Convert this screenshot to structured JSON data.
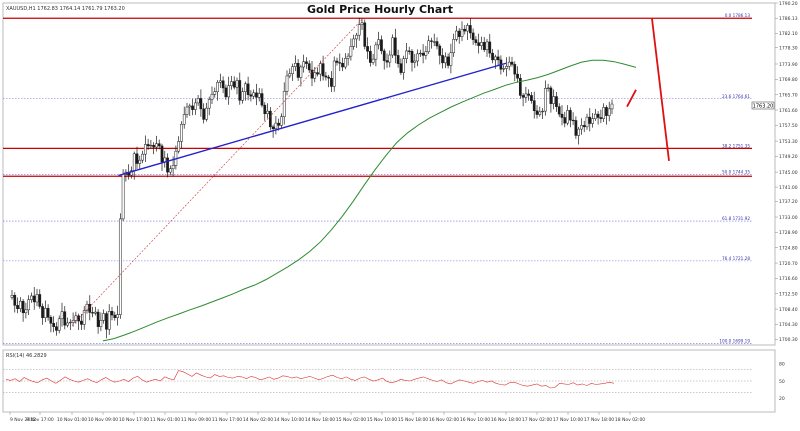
{
  "header": {
    "symbol_info": "XAUUSD,H1  1762.83  1764.14  1761.79  1763.20",
    "title": "Gold Price Hourly Chart"
  },
  "price_badge": "1763.20",
  "fib_labels": [
    "0.0 1786.13",
    "23.6 1764.61",
    "38.2 1751.35",
    "50.0 1744.35",
    "61.8 1731.92",
    "76.4 1721.28",
    "100.0 1699.19"
  ],
  "rsi_label": "RSI(14) 46.2829",
  "chart_data": [
    {
      "type": "line",
      "title": "Gold Price Hourly Chart",
      "instrument": "XAUUSD,H1",
      "ohlc": {
        "open": 1762.83,
        "high": 1764.14,
        "low": 1761.79,
        "close": 1763.2
      },
      "y_ticks": [
        1790.2,
        1786.13,
        1782.1,
        1778.3,
        1773.9,
        1769.8,
        1765.7,
        1761.6,
        1757.5,
        1753.3,
        1749.2,
        1745.0,
        1741.0,
        1737.2,
        1733.0,
        1728.9,
        1724.8,
        1720.7,
        1716.6,
        1712.5,
        1708.4,
        1704.3,
        1700.3
      ],
      "ylim": [
        1698.8,
        1790.2
      ],
      "x_ticks": [
        "9 Nov 2022",
        "9 Nov 17:00",
        "10 Nov 01:00",
        "10 Nov 09:00",
        "10 Nov 17:00",
        "11 Nov 01:00",
        "11 Nov 09:00",
        "11 Nov 17:00",
        "14 Nov 02:00",
        "14 Nov 10:00",
        "14 Nov 18:00",
        "15 Nov 02:00",
        "15 Nov 10:00",
        "15 Nov 18:00",
        "16 Nov 02:00",
        "16 Nov 10:00",
        "16 Nov 18:00",
        "17 Nov 02:00",
        "17 Nov 10:00",
        "17 Nov 18:00",
        "18 Nov 02:00"
      ],
      "fib_levels": [
        {
          "ratio": 0.0,
          "price": 1786.13
        },
        {
          "ratio": 23.6,
          "price": 1764.61
        },
        {
          "ratio": 38.2,
          "price": 1751.35
        },
        {
          "ratio": 50.0,
          "price": 1744.35
        },
        {
          "ratio": 61.8,
          "price": 1731.92
        },
        {
          "ratio": 76.4,
          "price": 1721.28
        },
        {
          "ratio": 100.0,
          "price": 1699.19
        }
      ],
      "horizontal_levels": [
        1786.13,
        1751.35,
        1743.9
      ],
      "current_price": 1763.2,
      "close_series": [
        1712.1,
        1709.4,
        1708.5,
        1710.5,
        1707.4,
        1708.2,
        1710.9,
        1711.9,
        1710.3,
        1712.3,
        1709.1,
        1706.1,
        1708.6,
        1706.2,
        1704.6,
        1703.7,
        1702.7,
        1705.8,
        1707.7,
        1704.1,
        1704.7,
        1704.9,
        1705.4,
        1706.6,
        1705.2,
        1704.3,
        1708.0,
        1709.7,
        1707.5,
        1707.3,
        1707.6,
        1703.7,
        1705.4,
        1707.2,
        1703.0,
        1707.8,
        1706.8,
        1706.1,
        1706.9,
        1732.5,
        1744.4,
        1745.0,
        1744.2,
        1745.4,
        1749.9,
        1747.3,
        1748.2,
        1749.8,
        1752.4,
        1752.0,
        1752.2,
        1751.7,
        1752.6,
        1752.0,
        1747.7,
        1748.8,
        1745.0,
        1745.9,
        1746.8,
        1750.6,
        1753.2,
        1757.8,
        1760.4,
        1762.4,
        1762.7,
        1761.7,
        1763.5,
        1764.7,
        1761.9,
        1759.1,
        1762.1,
        1764.4,
        1765.8,
        1766.5,
        1769.0,
        1769.4,
        1767.5,
        1765.1,
        1768.1,
        1769.2,
        1767.7,
        1769.5,
        1764.2,
        1766.5,
        1768.6,
        1765.7,
        1765.3,
        1766.2,
        1765.0,
        1766.0,
        1762.9,
        1760.6,
        1761.3,
        1757.1,
        1756.6,
        1758.1,
        1757.5,
        1759.8,
        1766.6,
        1770.7,
        1771.3,
        1773.2,
        1774.1,
        1770.3,
        1773.1,
        1774.5,
        1774.0,
        1772.3,
        1770.1,
        1771.6,
        1771.2,
        1774.0,
        1770.7,
        1770.4,
        1770.1,
        1767.9,
        1774.7,
        1774.3,
        1774.1,
        1773.1,
        1775.4,
        1776.0,
        1778.6,
        1780.6,
        1781.6,
        1784.4,
        1784.9,
        1778.6,
        1777.3,
        1774.3,
        1775.2,
        1779.0,
        1780.4,
        1777.4,
        1774.8,
        1774.4,
        1776.3,
        1780.9,
        1776.2,
        1774.0,
        1771.6,
        1775.3,
        1777.4,
        1777.3,
        1774.3,
        1774.7,
        1776.6,
        1776.8,
        1776.2,
        1777.2,
        1780.1,
        1779.9,
        1779.9,
        1778.7,
        1776.2,
        1774.2,
        1775.8,
        1773.5,
        1776.9,
        1780.5,
        1782.7,
        1781.2,
        1783.2,
        1782.7,
        1784.2,
        1782.2,
        1780.4,
        1779.6,
        1778.8,
        1779.7,
        1777.7,
        1779.8,
        1776.8,
        1775.0,
        1775.8,
        1775.0,
        1772.5,
        1772.7,
        1773.3,
        1774.4,
        1773.8,
        1771.2,
        1770.1,
        1765.5,
        1765.0,
        1765.9,
        1765.5,
        1764.1,
        1761.4,
        1760.4,
        1761.1,
        1761.3,
        1767.4,
        1767.5,
        1763.3,
        1765.2,
        1762.5,
        1760.5,
        1759.6,
        1758.1,
        1761.5,
        1758.9,
        1758.8,
        1754.8,
        1756.5,
        1757.5,
        1757.1,
        1759.7,
        1758.0,
        1759.3,
        1760.5,
        1759.6,
        1759.3,
        1762.3,
        1760.1,
        1761.9,
        1763.2
      ],
      "ma_series": [
        1699.9,
        1700.5,
        1701.5,
        1702.6,
        1703.8,
        1705.0,
        1706.1,
        1707.1,
        1708.2,
        1709.2,
        1710.3,
        1711.4,
        1712.5,
        1713.8,
        1714.9,
        1716.3,
        1718.0,
        1719.7,
        1721.6,
        1723.8,
        1726.4,
        1729.6,
        1733.2,
        1737.2,
        1741.5,
        1745.6,
        1749.4,
        1752.9,
        1755.5,
        1757.6,
        1759.4,
        1760.9,
        1762.4,
        1763.7,
        1764.9,
        1766.1,
        1767.1,
        1768.2,
        1769.0,
        1769.6,
        1770.3,
        1771.2,
        1772.3,
        1773.4,
        1774.4,
        1774.9,
        1774.9,
        1774.5,
        1773.8,
        1773.0
      ],
      "trend_lines": [
        {
          "name": "",
          "from": {
            "x": "10 Nov 13:00",
            "y": 1744.1
          },
          "to": {
            "x": "16 Nov 18:00",
            "y": 1774.1
          }
        },
        {
          "name": "",
          "from": {
            "x": "10 Nov 01:00",
            "y": 1704.0
          },
          "to": {
            "x": "15 Nov 05:00",
            "y": 1786.0
          }
        }
      ],
      "projection": [
        {
          "from": 1762.5,
          "to": 1767.0
        },
        {
          "from": 1767.0,
          "to": 1748.0
        }
      ],
      "xlabel": "",
      "ylabel": "",
      "grid": false,
      "legend": "none"
    },
    {
      "type": "line",
      "title": "RSI(14) 46.2829",
      "y_ticks": [
        80,
        50,
        20
      ],
      "ylim": [
        0,
        100
      ],
      "levels": [
        70,
        50,
        30
      ],
      "values": [
        53,
        51,
        54,
        49,
        56,
        52,
        49,
        47,
        52,
        55,
        50,
        46,
        51,
        57,
        53,
        50,
        48,
        51,
        54,
        50,
        47,
        52,
        56,
        51,
        48,
        50,
        53,
        49,
        55,
        58,
        52,
        48,
        51,
        53,
        50,
        57,
        54,
        52,
        68,
        66,
        62,
        58,
        64,
        60,
        57,
        55,
        61,
        58,
        59,
        56,
        55,
        58,
        57,
        54,
        58,
        56,
        52,
        54,
        57,
        53,
        55,
        59,
        58,
        55,
        57,
        54,
        56,
        58,
        55,
        52,
        55,
        58,
        60,
        56,
        54,
        57,
        53,
        51,
        55,
        57,
        53,
        50,
        52,
        55,
        49,
        47,
        49,
        53,
        51,
        50,
        53,
        55,
        57,
        54,
        51,
        49,
        52,
        47,
        45,
        49,
        52,
        50,
        48,
        46,
        49,
        51,
        48,
        50,
        46,
        44,
        43,
        47,
        48,
        45,
        42,
        41,
        43,
        45,
        41,
        42,
        38,
        39,
        46,
        45,
        44,
        47,
        43,
        45,
        42,
        46,
        44,
        45,
        46,
        48,
        46
      ]
    }
  ],
  "colors": {
    "candle": "#1a1a1a",
    "moving_average": "#2e8b2e",
    "trend_line": "#2222cc",
    "fib_trend": "#cc3333",
    "levels": "#cc0000",
    "fib_dotted": "#6b6be0",
    "rsi_line": "#dd3333",
    "projection": "#dd1111"
  }
}
